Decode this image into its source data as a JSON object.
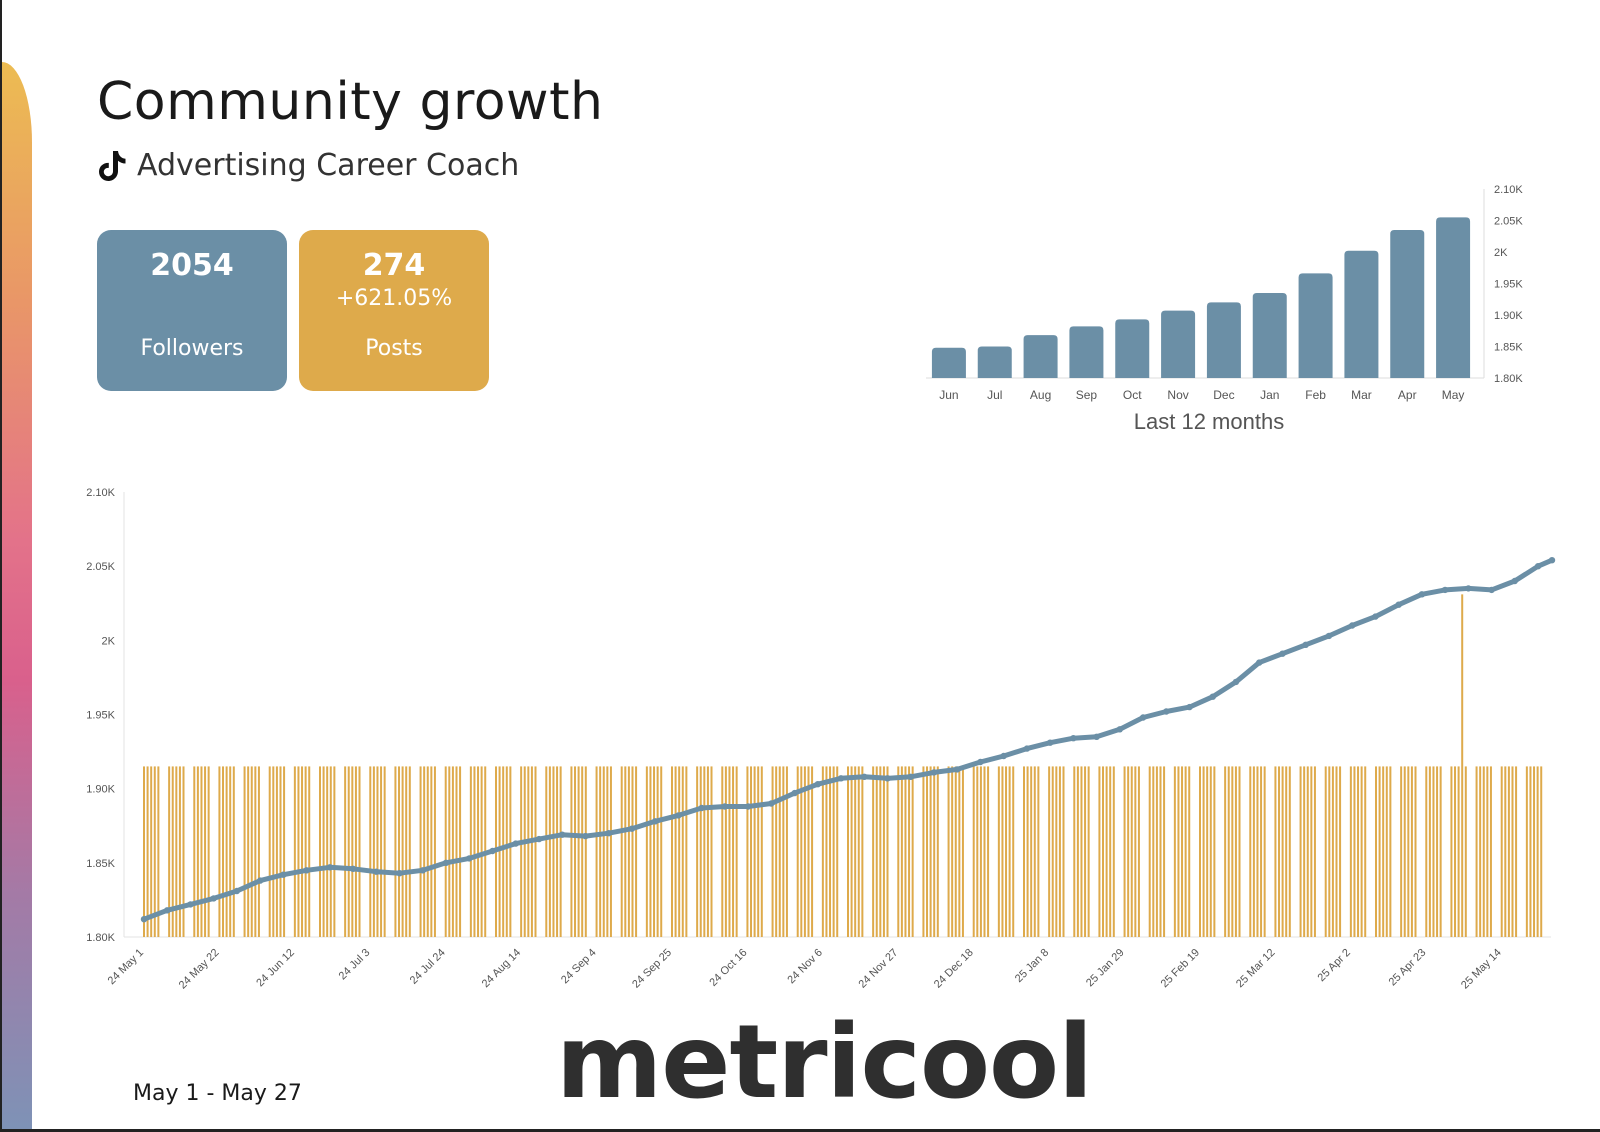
{
  "header": {
    "title": "Community growth",
    "account_name": "Advertising Career Coach",
    "platform_icon": "tiktok-icon"
  },
  "cards": {
    "followers": {
      "value": "2054",
      "label": "Followers"
    },
    "posts": {
      "value": "274",
      "delta": "+621.05%",
      "label": "Posts"
    }
  },
  "footer": {
    "date_range": "May 1  - May 27",
    "brand": "metricool"
  },
  "colors": {
    "followers": "#6b8fa6",
    "posts": "#deaa4b",
    "text": "#1a1a1a",
    "axis": "#555555"
  },
  "chart_data": [
    {
      "type": "bar",
      "title": "Last 12 months",
      "categories": [
        "Jun",
        "Jul",
        "Aug",
        "Sep",
        "Oct",
        "Nov",
        "Dec",
        "Jan",
        "Feb",
        "Mar",
        "Apr",
        "May"
      ],
      "values": [
        1.848,
        1.85,
        1.868,
        1.882,
        1.893,
        1.907,
        1.92,
        1.935,
        1.966,
        2.002,
        2.035,
        2.055
      ],
      "value_unit": "K followers",
      "ylim": [
        1.8,
        2.1
      ],
      "yticks": [
        "1.80K",
        "1.85K",
        "1.90K",
        "1.95K",
        "2K",
        "2.05K",
        "2.10K"
      ],
      "y_axis_side": "right"
    },
    {
      "type": "line+bar",
      "series": [
        {
          "name": "Followers",
          "kind": "line",
          "value_unit": "K",
          "points": [
            [
              0,
              1.812
            ],
            [
              10,
              1.818
            ],
            [
              20,
              1.822
            ],
            [
              30,
              1.826
            ],
            [
              40,
              1.831
            ],
            [
              50,
              1.838
            ],
            [
              60,
              1.842
            ],
            [
              70,
              1.845
            ],
            [
              80,
              1.847
            ],
            [
              90,
              1.846
            ],
            [
              100,
              1.844
            ],
            [
              110,
              1.843
            ],
            [
              120,
              1.845
            ],
            [
              130,
              1.85
            ],
            [
              140,
              1.853
            ],
            [
              150,
              1.858
            ],
            [
              160,
              1.863
            ],
            [
              170,
              1.866
            ],
            [
              180,
              1.869
            ],
            [
              190,
              1.868
            ],
            [
              200,
              1.87
            ],
            [
              210,
              1.873
            ],
            [
              220,
              1.878
            ],
            [
              230,
              1.882
            ],
            [
              240,
              1.887
            ],
            [
              250,
              1.888
            ],
            [
              260,
              1.888
            ],
            [
              270,
              1.89
            ],
            [
              280,
              1.897
            ],
            [
              290,
              1.903
            ],
            [
              300,
              1.907
            ],
            [
              310,
              1.908
            ],
            [
              320,
              1.907
            ],
            [
              330,
              1.908
            ],
            [
              340,
              1.911
            ],
            [
              350,
              1.913
            ],
            [
              360,
              1.918
            ],
            [
              370,
              1.922
            ],
            [
              380,
              1.927
            ],
            [
              390,
              1.931
            ],
            [
              400,
              1.934
            ],
            [
              410,
              1.935
            ],
            [
              420,
              1.94
            ],
            [
              430,
              1.948
            ],
            [
              440,
              1.952
            ],
            [
              450,
              1.955
            ],
            [
              460,
              1.962
            ],
            [
              470,
              1.972
            ],
            [
              480,
              1.985
            ],
            [
              490,
              1.991
            ],
            [
              500,
              1.997
            ],
            [
              510,
              2.003
            ],
            [
              520,
              2.01
            ],
            [
              530,
              2.016
            ],
            [
              540,
              2.024
            ],
            [
              550,
              2.031
            ],
            [
              560,
              2.034
            ],
            [
              570,
              2.035
            ],
            [
              580,
              2.034
            ],
            [
              590,
              2.04
            ],
            [
              600,
              2.05
            ],
            [
              606,
              2.054
            ]
          ]
        },
        {
          "name": "Posts",
          "kind": "bar",
          "daily_value": 1,
          "spike_day": 367,
          "spike_value": 2
        }
      ],
      "x_tick_labels": [
        "24 May 1",
        "24 May 22",
        "24 Jun 12",
        "24 Jul 3",
        "24 Jul 24",
        "24 Aug 14",
        "24 Sep 4",
        "24 Sep 25",
        "24 Oct 16",
        "24 Nov 6",
        "24 Nov 27",
        "24 Dec 18",
        "25 Jan 8",
        "25 Jan 29",
        "25 Feb 19",
        "25 Mar 12",
        "25 Apr 2",
        "25 Apr 23",
        "25 May 14"
      ],
      "x_tick_days": [
        0,
        21,
        42,
        63,
        84,
        105,
        126,
        147,
        168,
        189,
        210,
        231,
        252,
        273,
        294,
        315,
        336,
        357,
        378
      ],
      "x_days_total": 392,
      "ylim": [
        1.8,
        2.1
      ],
      "yticks": [
        "1.80K",
        "1.85K",
        "1.90K",
        "1.95K",
        "2K",
        "2.05K",
        "2.10K"
      ],
      "y_axis_side": "left"
    }
  ]
}
